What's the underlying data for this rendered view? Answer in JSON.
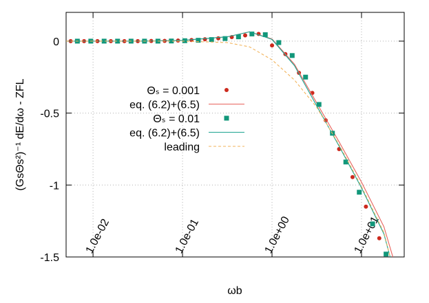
{
  "chart_data": {
    "type": "line",
    "xlabel": "ωb",
    "ylabel": "(GsΘs²)⁻¹ dE/dω - ZFL",
    "log_x": true,
    "grid": true,
    "xlim": [
      0.005,
      30
    ],
    "ylim": [
      -1.5,
      0.2
    ],
    "xticks": [
      {
        "value": 0.01,
        "label": "1.0e-02"
      },
      {
        "value": 0.1,
        "label": "1.0e-01"
      },
      {
        "value": 1,
        "label": "1.0e+00"
      },
      {
        "value": 10,
        "label": "1.0e+01"
      }
    ],
    "yticks": [
      0,
      -0.5,
      -1,
      -1.5
    ],
    "series": [
      {
        "name": "Θₛ = 0.001",
        "color": "#cc2a1e",
        "mark": "circle",
        "x": [
          0.00562,
          0.00794,
          0.0112,
          0.0158,
          0.0224,
          0.0316,
          0.0447,
          0.0631,
          0.0891,
          0.126,
          0.178,
          0.251,
          0.355,
          0.501,
          0.708,
          1.0,
          1.41,
          2.0,
          2.82,
          3.98,
          5.62,
          7.94,
          11.2,
          15.8
        ],
        "values": [
          0,
          0,
          0,
          0,
          0,
          0,
          0.001,
          0.002,
          0.004,
          0.008,
          0.013,
          0.02,
          0.028,
          0.04,
          0.05,
          -0.03,
          -0.09,
          -0.22,
          -0.36,
          -0.55,
          -0.75,
          -0.945,
          -1.15,
          -1.37
        ]
      },
      {
        "name": "eq. (6.2)+(6.5)",
        "color": "#e8605a",
        "mark": "line",
        "x": [
          0.005,
          0.01,
          0.0316,
          0.1,
          0.316,
          0.562,
          1.0,
          1.78,
          3.16,
          5.62,
          10,
          17.8,
          22.4
        ],
        "values": [
          0,
          0,
          0,
          0.005,
          0.03,
          0.065,
          0.015,
          -0.16,
          -0.43,
          -0.7,
          -0.98,
          -1.29,
          -1.5
        ]
      },
      {
        "name": "Θₛ = 0.01",
        "color": "#12977a",
        "mark": "square",
        "x": [
          0.00668,
          0.00944,
          0.0133,
          0.0188,
          0.0266,
          0.0376,
          0.0531,
          0.075,
          0.106,
          0.15,
          0.211,
          0.299,
          0.422,
          0.596,
          0.841,
          1.19,
          1.68,
          2.37,
          3.35,
          4.73,
          6.68,
          9.44,
          13.3,
          18.8
        ],
        "values": [
          0,
          0,
          0,
          0,
          0,
          0,
          0,
          0.001,
          0.003,
          0.006,
          0.011,
          0.018,
          0.03,
          0.05,
          0.045,
          -0.01,
          -0.1,
          -0.25,
          -0.44,
          -0.64,
          -0.84,
          -1.05,
          -1.27,
          -1.48
        ]
      },
      {
        "name": "eq. (6.2)+(6.5)",
        "color": "#1aa38f",
        "mark": "line",
        "x": [
          0.005,
          0.01,
          0.0316,
          0.1,
          0.316,
          0.562,
          1.0,
          1.78,
          3.16,
          5.62,
          10,
          17.8,
          20.9
        ],
        "values": [
          0,
          0,
          0,
          0.005,
          0.03,
          0.065,
          0.012,
          -0.17,
          -0.45,
          -0.73,
          -1.02,
          -1.34,
          -1.5
        ]
      },
      {
        "name": "leading",
        "color": "#f2b35a",
        "mark": "dashed",
        "x": [
          0.005,
          0.01,
          0.0316,
          0.1,
          0.316,
          0.562,
          1.0,
          1.78,
          3.16,
          5.62,
          10,
          17.8,
          20.9
        ],
        "values": [
          0,
          0,
          0,
          0,
          -0.01,
          -0.04,
          -0.13,
          -0.27,
          -0.46,
          -0.72,
          -1.01,
          -1.33,
          -1.5
        ]
      }
    ]
  }
}
